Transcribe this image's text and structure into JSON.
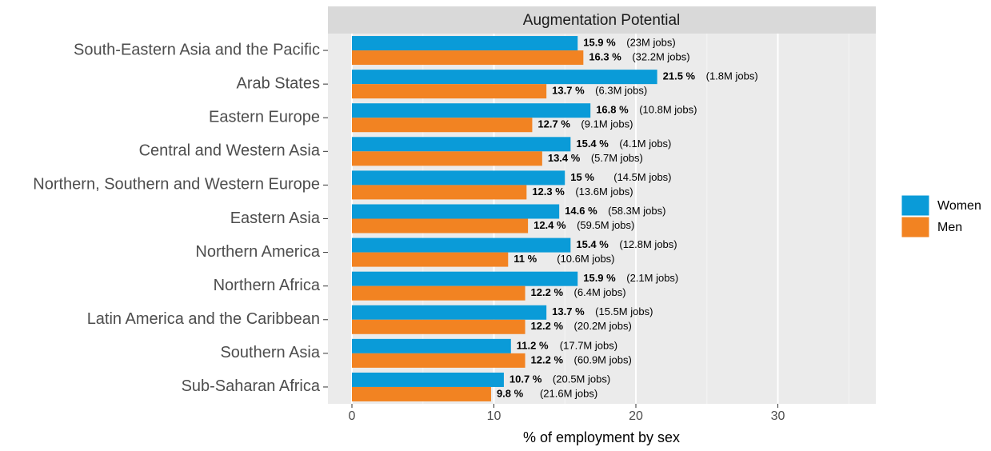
{
  "chart_data": {
    "type": "bar",
    "orientation": "horizontal",
    "facet_title": "Augmentation Potential",
    "x_label": "% of employment by sex",
    "categories": [
      "South-Eastern Asia and the Pacific",
      "Arab States",
      "Eastern Europe",
      "Central and Western Asia",
      "Northern, Southern and Western Europe",
      "Eastern Asia",
      "Northern America",
      "Northern Africa",
      "Latin America and the Caribbean",
      "Southern Asia",
      "Sub-Saharan Africa"
    ],
    "series": [
      {
        "name": "Women",
        "color": "#0a9bd8",
        "values": [
          15.9,
          21.5,
          16.8,
          15.4,
          15,
          14.6,
          15.4,
          15.9,
          13.7,
          11.2,
          10.7
        ],
        "value_labels": [
          "15.9 %",
          "21.5 %",
          "16.8 %",
          "15.4 %",
          "15 %",
          "14.6 %",
          "15.4 %",
          "15.9 %",
          "13.7 %",
          "11.2 %",
          "10.7 %"
        ],
        "job_labels": [
          "(23M jobs)",
          "(1.8M jobs)",
          "(10.8M jobs)",
          "(4.1M jobs)",
          "(14.5M jobs)",
          "(58.3M jobs)",
          "(12.8M jobs)",
          "(2.1M jobs)",
          "(15.5M jobs)",
          "(17.7M jobs)",
          "(20.5M jobs)"
        ]
      },
      {
        "name": "Men",
        "color": "#f28322",
        "values": [
          16.3,
          13.7,
          12.7,
          13.4,
          12.3,
          12.4,
          11,
          12.2,
          12.2,
          12.2,
          9.8
        ],
        "value_labels": [
          "16.3 %",
          "13.7 %",
          "12.7 %",
          "13.4 %",
          "12.3 %",
          "12.4 %",
          "11 %",
          "12.2 %",
          "12.2 %",
          "12.2 %",
          "9.8 %"
        ],
        "job_labels": [
          "(32.2M jobs)",
          "(6.3M jobs)",
          "(9.1M jobs)",
          "(5.7M jobs)",
          "(13.6M jobs)",
          "(59.5M jobs)",
          "(10.6M jobs)",
          "(6.4M jobs)",
          "(20.2M jobs)",
          "(60.9M jobs)",
          "(21.6M jobs)"
        ]
      }
    ],
    "xlim": [
      -1.69,
      36.9
    ],
    "xticks": [
      0,
      10,
      20,
      30
    ],
    "xminor": [
      5,
      15,
      25,
      35
    ],
    "grid": true,
    "legend": "right"
  }
}
